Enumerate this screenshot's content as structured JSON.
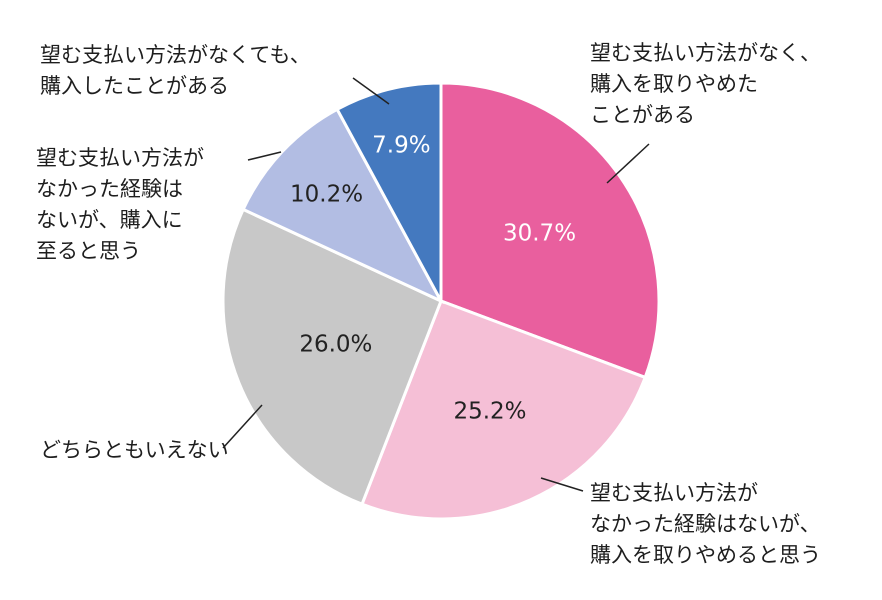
{
  "chart_data": {
    "type": "pie",
    "start_angle_deg": 0,
    "direction": "clockwise",
    "slices": [
      {
        "label": "望む支払い方法がなく、\n購入を取りやめた\nことがある",
        "value": 30.7,
        "value_label": "30.7%",
        "color": "#E95F9E",
        "text_color": "#ffffff"
      },
      {
        "label": "望む支払い方法が\nなかった経験はないが、\n購入を取りやめると思う",
        "value": 25.2,
        "value_label": "25.2%",
        "color": "#F5BFD6",
        "text_color": "#222222"
      },
      {
        "label": "どちらともいえない",
        "value": 26.0,
        "value_label": "26.0%",
        "color": "#C8C8C8",
        "text_color": "#222222"
      },
      {
        "label": "望む支払い方法が\nなかった経験は\nないが、購入に\n至ると思う",
        "value": 10.2,
        "value_label": "10.2%",
        "color": "#B2BDE3",
        "text_color": "#222222"
      },
      {
        "label": "望む支払い方法がなくても、\n購入したことがある",
        "value": 7.9,
        "value_label": "7.9%",
        "color": "#4479BF",
        "text_color": "#ffffff"
      }
    ]
  }
}
